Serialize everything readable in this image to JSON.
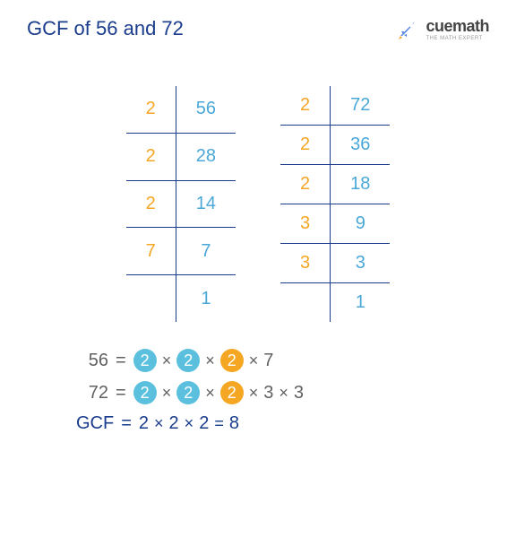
{
  "title": {
    "text": "GCF of 56 and 72",
    "color": "#1a3c8c"
  },
  "logo": {
    "main": "cuemath",
    "sub": "THE MATH EXPERT",
    "rocket_color": "#4a7fe0"
  },
  "colors": {
    "orange": "#f5a623",
    "blue": "#4aa8d8",
    "cyan": "#5bc0de",
    "navy": "#1a3c8c",
    "grey": "#616161"
  },
  "ladder1": {
    "rows": [
      {
        "d": "2",
        "q": "56"
      },
      {
        "d": "2",
        "q": "28"
      },
      {
        "d": "2",
        "q": "14"
      },
      {
        "d": "7",
        "q": "7"
      },
      {
        "d": "",
        "q": "1"
      }
    ]
  },
  "ladder2": {
    "rows": [
      {
        "d": "2",
        "q": "72"
      },
      {
        "d": "2",
        "q": "36"
      },
      {
        "d": "2",
        "q": "18"
      },
      {
        "d": "3",
        "q": "9"
      },
      {
        "d": "3",
        "q": "3"
      },
      {
        "d": "",
        "q": "1"
      }
    ]
  },
  "eq1": {
    "label": "56",
    "parts": [
      {
        "t": "bubble",
        "v": "2",
        "bg": "#5bc0de"
      },
      {
        "t": "op",
        "v": "×"
      },
      {
        "t": "bubble",
        "v": "2",
        "bg": "#5bc0de"
      },
      {
        "t": "op",
        "v": "×"
      },
      {
        "t": "bubble",
        "v": "2",
        "bg": "#f5a623"
      },
      {
        "t": "op",
        "v": "×"
      },
      {
        "t": "plain",
        "v": "7"
      }
    ]
  },
  "eq2": {
    "label": "72",
    "parts": [
      {
        "t": "bubble",
        "v": "2",
        "bg": "#5bc0de"
      },
      {
        "t": "op",
        "v": "×"
      },
      {
        "t": "bubble",
        "v": "2",
        "bg": "#5bc0de"
      },
      {
        "t": "op",
        "v": "×"
      },
      {
        "t": "bubble",
        "v": "2",
        "bg": "#f5a623"
      },
      {
        "t": "op",
        "v": "×"
      },
      {
        "t": "plain",
        "v": "3"
      },
      {
        "t": "op",
        "v": "×"
      },
      {
        "t": "plain",
        "v": "3"
      }
    ]
  },
  "gcf": {
    "label": "GCF",
    "parts": [
      {
        "t": "plain",
        "v": "2"
      },
      {
        "t": "op",
        "v": "×"
      },
      {
        "t": "plain",
        "v": "2"
      },
      {
        "t": "op",
        "v": "×"
      },
      {
        "t": "plain",
        "v": "2"
      },
      {
        "t": "op",
        "v": "="
      },
      {
        "t": "plain",
        "v": "8"
      }
    ]
  }
}
